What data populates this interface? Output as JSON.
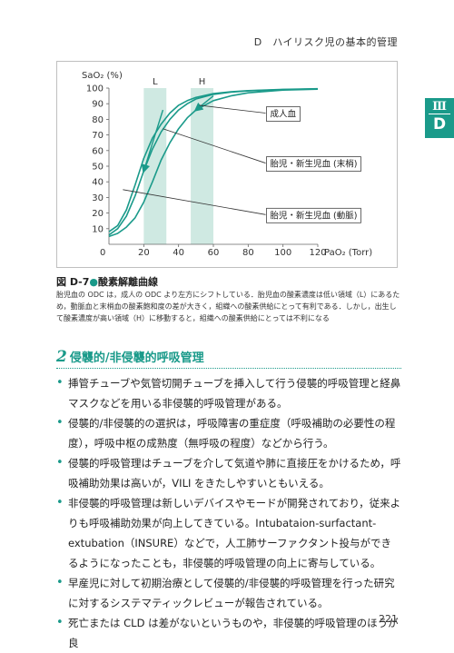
{
  "running_head": "D　ハイリスク児の基本的管理",
  "side_tab": {
    "chapter": "Ⅲ",
    "section": "D"
  },
  "figure": {
    "number": "図 D-7",
    "title": "酸素解離曲線",
    "description": "胎児血の ODC は，成人の ODC より左方にシフトしている．胎児血の酸素濃度は低い領域（L）にあるため，動脈血と末梢血の酸素飽和度の差が大きく，組織への酸素供給にとって有利である．しかし，出生して酸素濃度が高い領域（H）に移動すると，組織への酸素供給にとっては不利になる"
  },
  "chart_data": {
    "type": "line",
    "ylabel": "SaO₂ (%)",
    "xlabel": "PaO₂ (Torr)",
    "xlim": [
      0,
      120
    ],
    "ylim": [
      0,
      100
    ],
    "x_ticks": [
      20,
      40,
      60,
      80,
      100,
      120
    ],
    "y_ticks": [
      10,
      20,
      30,
      40,
      50,
      60,
      70,
      80,
      90,
      100
    ],
    "origin_label": "0",
    "grid": false,
    "colors": {
      "curve": "#1a9a8a",
      "band": "#cfe9e2",
      "arrow": "#1a9a8a"
    },
    "bands": [
      {
        "label": "L",
        "x0": 20,
        "x1": 33
      },
      {
        "label": "H",
        "x0": 47,
        "x1": 60
      }
    ],
    "series": [
      {
        "name": "胎児・新生児血 (末梢)",
        "x": [
          0,
          5,
          10,
          15,
          20,
          25,
          30,
          35,
          40,
          45,
          50,
          60,
          70,
          80,
          100,
          120
        ],
        "y": [
          8,
          12,
          22,
          38,
          55,
          68,
          77,
          84,
          89,
          92,
          94,
          96.5,
          97.7,
          98.4,
          99.2,
          99.6
        ]
      },
      {
        "name": "胎児・新生児血 (動脈)",
        "x": [
          0,
          5,
          10,
          15,
          20,
          25,
          30,
          35,
          40,
          45,
          50,
          60,
          70,
          80,
          100,
          120
        ],
        "y": [
          6,
          10,
          18,
          31,
          47,
          61,
          72,
          80,
          86,
          90,
          93,
          96,
          97.4,
          98.2,
          99,
          99.5
        ]
      },
      {
        "name": "成人血",
        "x": [
          0,
          5,
          10,
          15,
          20,
          25,
          30,
          35,
          40,
          45,
          50,
          60,
          70,
          80,
          100,
          120
        ],
        "y": [
          5,
          7,
          11,
          17,
          27,
          40,
          54,
          65,
          74,
          81,
          86,
          92,
          95,
          97,
          98.7,
          99.3
        ]
      }
    ],
    "arrows": [
      {
        "from": [
          31,
          86
        ],
        "to": [
          20,
          47
        ]
      },
      {
        "from": [
          60,
          95
        ],
        "to": [
          50,
          86
        ]
      }
    ],
    "labels": [
      {
        "text": "成人血",
        "at": [
          90,
          84
        ],
        "points_to": [
          52,
          89
        ]
      },
      {
        "text": "胎児・新生児血 (末梢)",
        "at": [
          90,
          52
        ],
        "points_to": [
          31,
          74
        ]
      },
      {
        "text": "胎児・新生児血 (動脈)",
        "at": [
          90,
          19
        ],
        "points_to": [
          8,
          35
        ]
      }
    ]
  },
  "section": {
    "number": "2",
    "title": "侵襲的/非侵襲的呼吸管理"
  },
  "bullets": [
    "挿管チューブや気管切開チューブを挿入して行う侵襲的呼吸管理と経鼻マスクなどを用いる非侵襲的呼吸管理がある。",
    "侵襲的/非侵襲的の選択は，呼吸障害の重症度（呼吸補助の必要性の程度），呼吸中枢の成熟度（無呼吸の程度）などから行う。",
    "侵襲的呼吸管理はチューブを介して気道や肺に直接圧をかけるため，呼吸補助効果は高いが，VILI をきたしやすいともいえる。",
    "非侵襲的呼吸管理は新しいデバイスやモードが開発されており，従来よりも呼吸補助効果が向上してきている。Intubataion-surfactant-extubation（INSURE）などで，人工肺サーファクタント投与ができるようになったことも，非侵襲的呼吸管理の向上に寄与している。",
    "早産児に対して初期治療として侵襲的/非侵襲的呼吸管理を行った研究に対するシステマティックレビューが報告されている。",
    "死亡または CLD は差がないというものや，非侵襲的呼吸管理のほうが良"
  ],
  "page_number": "221"
}
